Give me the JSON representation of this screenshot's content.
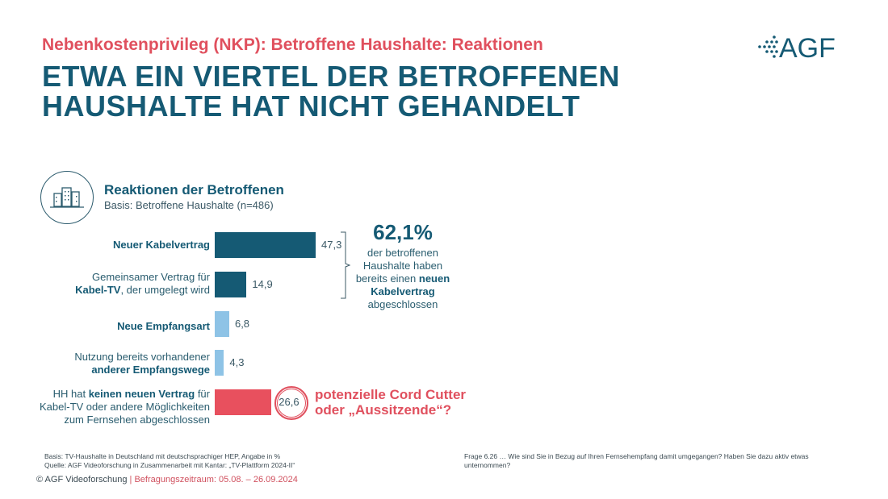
{
  "header": {
    "subtitle": "Nebenkostenprivileg (NKP): Betroffene Haushalte: Reaktionen",
    "headline_line1": "ETWA EIN VIERTEL DER BETROFFENEN",
    "headline_line2": "HAUSHALTE HAT NICHT GEHANDELT",
    "logo_text": "AGF"
  },
  "section": {
    "icon": "buildings-icon",
    "title": "Reaktionen der Betroffenen",
    "basis": "Basis: Betroffene Haushalte (n=486)"
  },
  "chart_data": {
    "type": "bar",
    "orientation": "horizontal",
    "title": "Reaktionen der Betroffenen",
    "subtitle": "Basis: Betroffene Haushalte (n=486)",
    "unit": "%",
    "categories": [
      "Neuer Kabelvertrag",
      "Gemeinsamer Vertrag für Kabel-TV, der umgelegt wird",
      "Neue Empfangsart",
      "Nutzung bereits vorhandener anderer Empfangswege",
      "HH hat keinen neuen Vertrag für Kabel-TV oder andere Möglichkeiten zum Fernsehen abgeschlossen"
    ],
    "values": [
      47.3,
      14.9,
      6.8,
      4.3,
      26.6
    ],
    "value_labels": [
      "47,3",
      "14,9",
      "6,8",
      "4,3",
      "26,6"
    ],
    "colors": [
      "#155a74",
      "#155a74",
      "#8ec3e6",
      "#8ec3e6",
      "#e8505e"
    ],
    "xlim": [
      0,
      50
    ],
    "grid": false,
    "labels": [
      {
        "regular_before": "",
        "bold": "Neuer Kabelvertrag",
        "regular_after": ""
      },
      {
        "line1": "Gemeinsamer Vertrag für",
        "bold": "Kabel-TV",
        "regular_after": ", der umgelegt wird"
      },
      {
        "regular_before": "",
        "bold": "Neue Empfangsart",
        "regular_after": ""
      },
      {
        "line1": "Nutzung bereits vorhandener",
        "bold": "anderer Empfangswege",
        "regular_after": ""
      },
      {
        "regular_before": "HH hat ",
        "bold": "keinen neuen Vertrag",
        "regular_after": " für",
        "line2": "Kabel-TV oder andere Möglichkeiten",
        "line3": "zum Fernsehen abgeschlossen"
      }
    ],
    "annotations": {
      "highlight_total": "62,1%",
      "highlight_desc_1": "der betroffenen",
      "highlight_desc_2": "Haushalte haben",
      "highlight_desc_3": "bereits einen ",
      "highlight_desc_bold_1": "neuen",
      "highlight_desc_bold_2": "Kabelvertrag",
      "highlight_desc_4": "abgeschlossen",
      "cord_cutter_1": "potenzielle Cord Cutter",
      "cord_cutter_2": "oder „Aussitzende“?"
    }
  },
  "footer": {
    "basis": "Basis: TV-Haushalte in Deutschland mit deutschsprachiger HEP, Angabe in %",
    "quelle": "Quelle: AGF Videoforschung in Zusammenarbeit mit Kantar: „TV-Plattform 2024-II“",
    "copyright": "© AGF Videoforschung",
    "separator": " | ",
    "zeitraum": "Befragungszeitraum: 05.08. – 26.09.2024",
    "frage": "Frage 6.26 … Wie sind Sie in Bezug auf Ihren Fernsehempfang damit umgegangen? Haben Sie dazu aktiv etwas unternommen?"
  }
}
